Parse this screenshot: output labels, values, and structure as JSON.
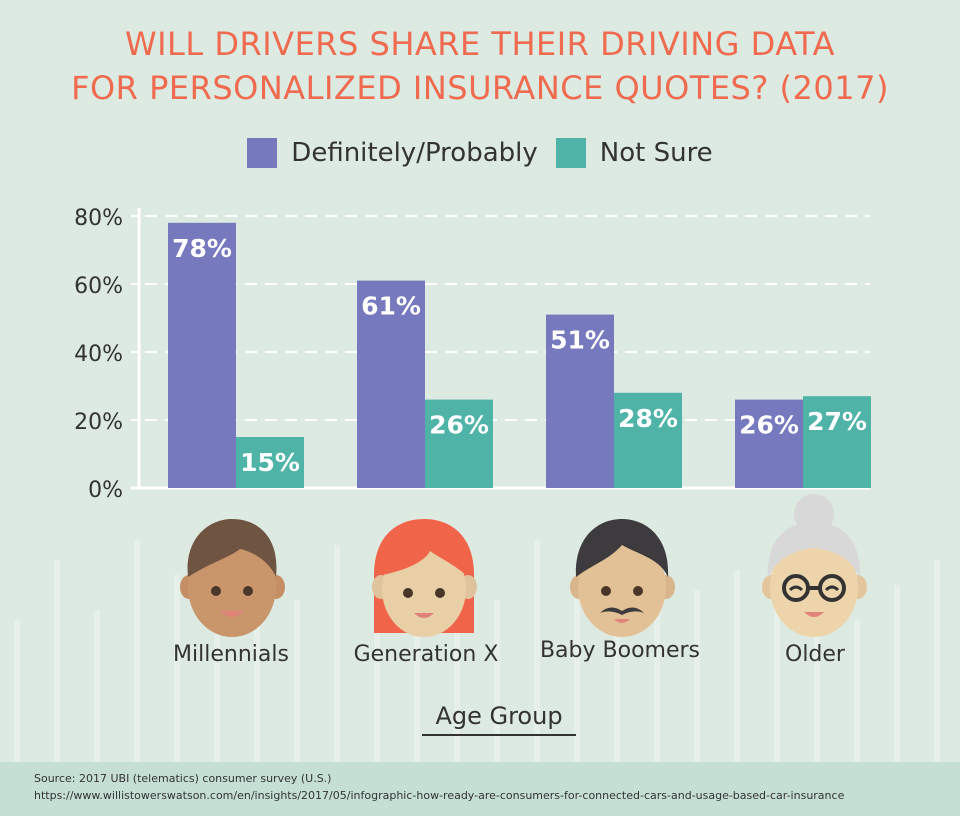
{
  "title_line1": "WILL DRIVERS SHARE THEIR DRIVING DATA",
  "title_line2": "FOR PERSONALIZED INSURANCE QUOTES? (2017)",
  "colors": {
    "title": "#ef6a4e",
    "series1": "#7679bd",
    "series2": "#4fb3a8",
    "background": "#ddeae1"
  },
  "chart_data": {
    "type": "bar",
    "categories": [
      "Millennials",
      "Generation X",
      "Baby Boomers",
      "Older"
    ],
    "series": [
      {
        "name": "Definitely/Probably",
        "values": [
          78,
          61,
          51,
          26
        ],
        "labels": [
          "78%",
          "61%",
          "51%",
          "26%"
        ],
        "color": "#7679bd"
      },
      {
        "name": "Not Sure",
        "values": [
          15,
          26,
          28,
          27
        ],
        "labels": [
          "15%",
          "26%",
          "28%",
          "27%"
        ],
        "color": "#4fb3a8"
      }
    ],
    "yticks": [
      "0%",
      "20%",
      "40%",
      "60%",
      "80%"
    ],
    "ylim": [
      0,
      80
    ],
    "xlabel": "Age Group",
    "grid": true,
    "legend_position": "top"
  },
  "source_line1": "Source: 2017 UBI (telematics) consumer survey (U.S.)",
  "source_line2": "https://www.willistowerswatson.com/en/insights/2017/05/infographic-how-ready-are-consumers-for-connected-cars-and-usage-based-car-insurance"
}
